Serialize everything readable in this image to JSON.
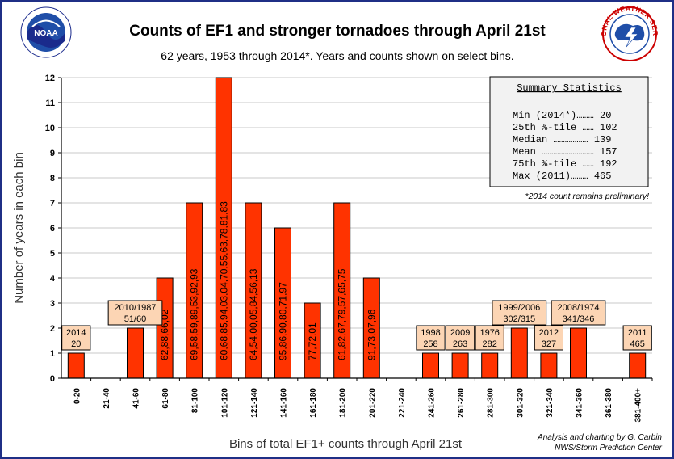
{
  "chart_data": {
    "type": "bar",
    "title": "Counts of EF1 and stronger tornadoes through April 21st",
    "subtitle": "62 years, 1953 through 2014*. Years and counts shown on select bins.",
    "xlabel": "Bins of total EF1+ counts through April 21st",
    "ylabel": "Number of years in each bin",
    "ylim": [
      0,
      12
    ],
    "yticks": [
      "0",
      "1",
      "2",
      "3",
      "4",
      "5",
      "6",
      "7",
      "8",
      "9",
      "10",
      "11",
      "12"
    ],
    "grid": true,
    "categories": [
      "0-20",
      "21-40",
      "41-60",
      "61-80",
      "81-100",
      "101-120",
      "121-140",
      "141-160",
      "161-180",
      "181-200",
      "201-220",
      "221-240",
      "241-260",
      "261-280",
      "281-300",
      "301-320",
      "321-340",
      "341-360",
      "361-380",
      "381-400+"
    ],
    "values": [
      1,
      0,
      2,
      4,
      7,
      12,
      7,
      6,
      3,
      7,
      4,
      0,
      1,
      1,
      1,
      2,
      1,
      2,
      0,
      1
    ],
    "bar_color": "#ff3300",
    "vertical_labels": [
      "",
      "",
      "",
      "62,88,66,02",
      "69,58,59,89,53,92,93",
      "60,68,85,94,03,04,70,55,63,78,81,83",
      "64,54,00,05,84,56,13",
      "95,86,90,80,71,97",
      "77,72,01",
      "61,82,67,79,57,65,75",
      "91,73,07,96",
      "",
      "",
      "",
      "",
      "",
      "",
      "",
      "",
      ""
    ],
    "box_labels": [
      {
        "bin": 0,
        "line1": "2014",
        "line2": "20"
      },
      {
        "bin": 2,
        "line1": "2010/1987",
        "line2": "51/60"
      },
      {
        "bin": 12,
        "line1": "1998",
        "line2": "258"
      },
      {
        "bin": 13,
        "line1": "2009",
        "line2": "263"
      },
      {
        "bin": 14,
        "line1": "1976",
        "line2": "282"
      },
      {
        "bin": 15,
        "line1": "1999/2006",
        "line2": "302/315"
      },
      {
        "bin": 16,
        "line1": "2012",
        "line2": "327"
      },
      {
        "bin": 17,
        "line1": "2008/1974",
        "line2": "341/346"
      },
      {
        "bin": 19,
        "line1": "2011",
        "line2": "465"
      }
    ],
    "box_color": "#fcd5b4",
    "summary": {
      "title": "Summary Statistics",
      "rows": [
        "Min (2014*)……… 20",
        "25th %-tile …… 102",
        "Median ……………… 139",
        "Mean ……………………… 157",
        "75th %-tile …… 192",
        "Max (2011)……… 465"
      ]
    },
    "note": "*2014 count remains preliminary!",
    "credit_line1": "Analysis and charting by G. Carbin",
    "credit_line2": "NWS/Storm Prediction Center"
  },
  "logos": {
    "noaa_text": "NOAA",
    "nws_ring_text": "NATIONAL WEATHER SERVICE"
  }
}
